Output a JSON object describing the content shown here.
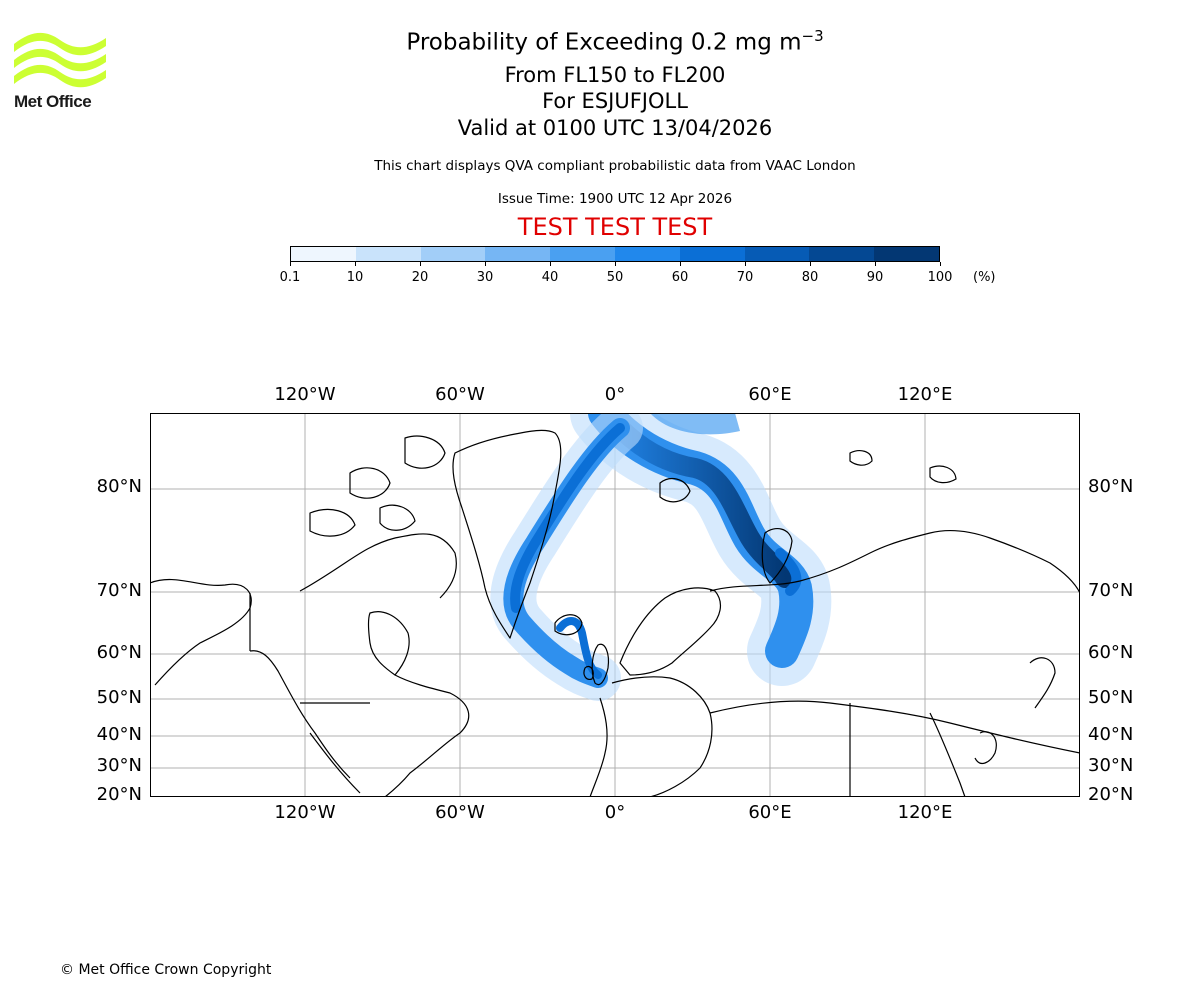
{
  "logo": {
    "text": "Met Office",
    "icon": "met-office-wave-logo",
    "color": "#ccff33"
  },
  "titles": {
    "main_prefix": "Probability of Exceeding 0.2 mg m",
    "main_sup": "−3",
    "levels": "From FL150 to FL200",
    "volcano": "For ESJUFJOLL",
    "valid": "Valid at 0100 UTC 13/04/2026",
    "description": "This chart displays QVA compliant probabilistic data from VAAC London",
    "issue": "Issue Time: 1900 UTC 12 Apr 2026",
    "test_banner": "TEST TEST TEST"
  },
  "colorbar": {
    "ticks": [
      "0.1",
      "10",
      "20",
      "30",
      "40",
      "50",
      "60",
      "70",
      "80",
      "90",
      "100"
    ],
    "unit": "(%)",
    "colors": [
      "#eef6fe",
      "#c9e3fb",
      "#a2cef8",
      "#76b6f4",
      "#4aa0f1",
      "#2188ec",
      "#0b6fd6",
      "#065bb5",
      "#044893",
      "#033773"
    ]
  },
  "map": {
    "lon_labels": [
      "120°W",
      "60°W",
      "0°",
      "60°E",
      "120°E"
    ],
    "lat_labels": [
      "80°N",
      "70°N",
      "60°N",
      "50°N",
      "40°N",
      "30°N",
      "20°N"
    ]
  },
  "footer": {
    "copyright": "© Met Office Crown Copyright"
  }
}
